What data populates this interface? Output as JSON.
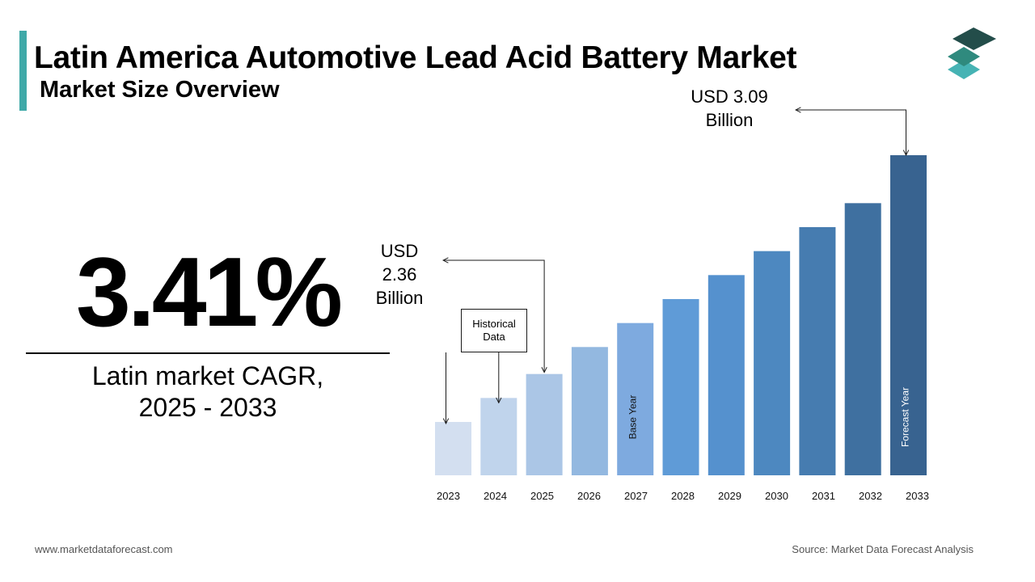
{
  "header": {
    "title": "Latin America Automotive Lead Acid Battery Market",
    "subtitle": "Market Size Overview"
  },
  "cagr": {
    "value": "3.41%",
    "label_line1": "Latin market CAGR,",
    "label_line2": "2025 - 2033"
  },
  "callouts": {
    "start_line1": "USD",
    "start_line2": "2.36",
    "start_line3": "Billion",
    "end_line1": "USD 3.09",
    "end_line2": "Billion",
    "historical_line1": "Historical",
    "historical_line2": "Data"
  },
  "footer": {
    "website": "www.marketdataforecast.com",
    "source": "Source: Market Data Forecast Analysis"
  },
  "chart_data": {
    "type": "bar",
    "categories": [
      "2023",
      "2024",
      "2025",
      "2026",
      "2027",
      "2028",
      "2029",
      "2030",
      "2031",
      "2032",
      "2033"
    ],
    "values": [
      2.2,
      2.28,
      2.36,
      2.45,
      2.53,
      2.61,
      2.69,
      2.77,
      2.85,
      2.93,
      3.09
    ],
    "unit": "USD Billion",
    "bar_colors": [
      "#d3dff0",
      "#c0d4ec",
      "#abc6e6",
      "#93b8e0",
      "#7eaadf",
      "#5f9bd7",
      "#5591ce",
      "#4d88c0",
      "#467cb0",
      "#3f70a0",
      "#386390"
    ],
    "bar_annotations": [
      {
        "category": "2027",
        "text": "Base Year"
      },
      {
        "category": "2033",
        "text": "Forecast Year"
      }
    ],
    "grid": false,
    "legend": "none"
  }
}
